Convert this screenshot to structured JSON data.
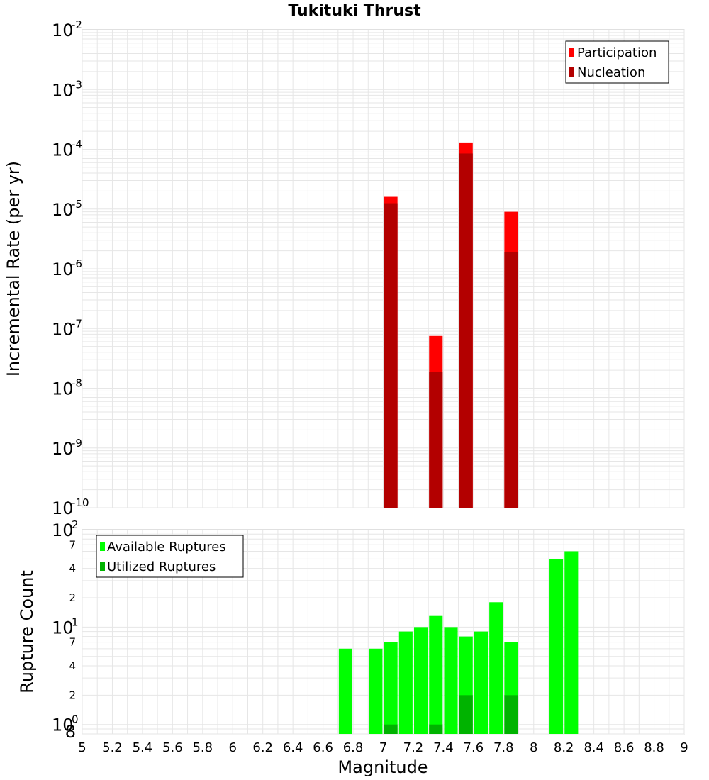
{
  "chart_data": [
    {
      "type": "bar",
      "title": "Tukituki Thrust",
      "xlabel": "",
      "ylabel": "Incremental Rate (per yr)",
      "xlim": [
        5,
        9
      ],
      "ylim": [
        1e-10,
        0.01
      ],
      "yscale": "log",
      "legend": "top-right",
      "grid": true,
      "x": [
        7.05,
        7.35,
        7.55,
        7.85
      ],
      "series": [
        {
          "name": "Participation",
          "color": "#ff0000",
          "values": [
            1.6e-05,
            7.5e-08,
            0.00013,
            9e-06
          ]
        },
        {
          "name": "Nucleation",
          "color": "#b30000",
          "values": [
            1.25e-05,
            1.9e-08,
            8.5e-05,
            1.9e-06
          ]
        }
      ]
    },
    {
      "type": "bar",
      "xlabel": "Magnitude",
      "ylabel": "Rupture Count",
      "xlim": [
        5,
        9
      ],
      "ylim": [
        0.8,
        100
      ],
      "yscale": "log",
      "legend": "top-left",
      "grid": true,
      "x": [
        6.75,
        6.95,
        7.05,
        7.15,
        7.25,
        7.35,
        7.45,
        7.55,
        7.65,
        7.75,
        7.85,
        8.15,
        8.25
      ],
      "series": [
        {
          "name": "Available Ruptures",
          "color": "#00ff00",
          "values": [
            6,
            6,
            7,
            9,
            10,
            13,
            10,
            8,
            9,
            18,
            7,
            50,
            60
          ]
        },
        {
          "name": "Utilized Ruptures",
          "color": "#00b300",
          "values": [
            0,
            0,
            1,
            0,
            0,
            1,
            0,
            2,
            0,
            0,
            2,
            0,
            0
          ]
        }
      ]
    }
  ],
  "axis": {
    "x_ticks": [
      "5",
      "5.2",
      "5.4",
      "5.6",
      "5.8",
      "6",
      "6.2",
      "6.4",
      "6.6",
      "6.8",
      "7",
      "7.2",
      "7.4",
      "7.6",
      "7.8",
      "8",
      "8.2",
      "8.4",
      "8.6",
      "8.8",
      "9"
    ],
    "top_decades": [
      {
        "base": "10",
        "exp": "-2"
      },
      {
        "base": "10",
        "exp": "-3"
      },
      {
        "base": "10",
        "exp": "-4"
      },
      {
        "base": "10",
        "exp": "-5"
      },
      {
        "base": "10",
        "exp": "-6"
      },
      {
        "base": "10",
        "exp": "-7"
      },
      {
        "base": "10",
        "exp": "-8"
      },
      {
        "base": "10",
        "exp": "-9"
      },
      {
        "base": "10",
        "exp": "-10"
      }
    ],
    "bottom_decades": [
      {
        "base": "10",
        "exp": "2"
      },
      {
        "base": "10",
        "exp": "1"
      },
      {
        "base": "10",
        "exp": "0"
      }
    ],
    "bottom_minor_labels": [
      "7",
      "4",
      "2",
      "7",
      "4",
      "2",
      "8"
    ]
  }
}
